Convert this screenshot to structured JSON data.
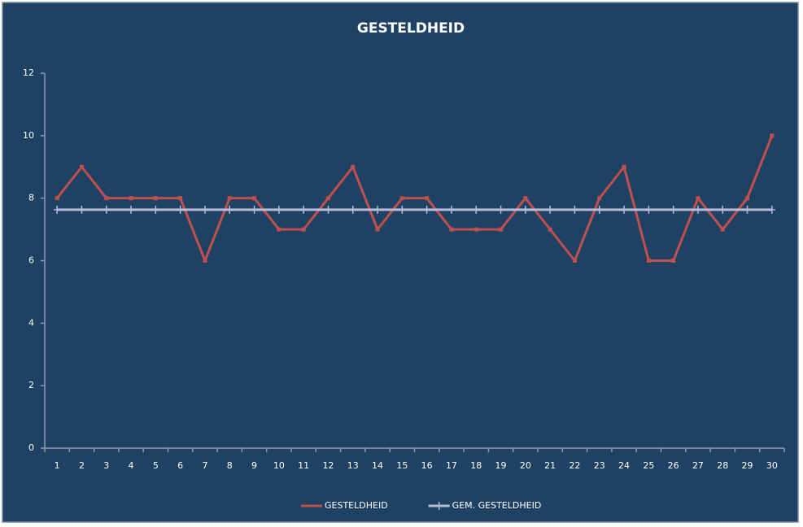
{
  "chart_data": {
    "type": "line",
    "title": "GESTELDHEID",
    "categories": [
      "1",
      "2",
      "3",
      "4",
      "5",
      "6",
      "7",
      "8",
      "9",
      "10",
      "11",
      "12",
      "13",
      "14",
      "15",
      "16",
      "17",
      "18",
      "19",
      "20",
      "21",
      "22",
      "23",
      "24",
      "25",
      "26",
      "27",
      "28",
      "29",
      "30"
    ],
    "series": [
      {
        "name": "GESTELDHEID",
        "color": "#c0504d",
        "marker": "square",
        "values": [
          8,
          9,
          8,
          8,
          8,
          8,
          6,
          8,
          8,
          7,
          7,
          8,
          9,
          7,
          8,
          8,
          7,
          7,
          7,
          8,
          7,
          6,
          8,
          9,
          6,
          6,
          8,
          7,
          8,
          10
        ]
      },
      {
        "name": "GEM. GESTELDHEID",
        "color": "#b7b9dc",
        "marker": "plus",
        "values": [
          7.63,
          7.63,
          7.63,
          7.63,
          7.63,
          7.63,
          7.63,
          7.63,
          7.63,
          7.63,
          7.63,
          7.63,
          7.63,
          7.63,
          7.63,
          7.63,
          7.63,
          7.63,
          7.63,
          7.63,
          7.63,
          7.63,
          7.63,
          7.63,
          7.63,
          7.63,
          7.63,
          7.63,
          7.63,
          7.63
        ]
      }
    ],
    "ylim": [
      0,
      12
    ],
    "yticks": [
      0,
      2,
      4,
      6,
      8,
      10,
      12
    ],
    "grid": false,
    "legend": "bottom"
  }
}
